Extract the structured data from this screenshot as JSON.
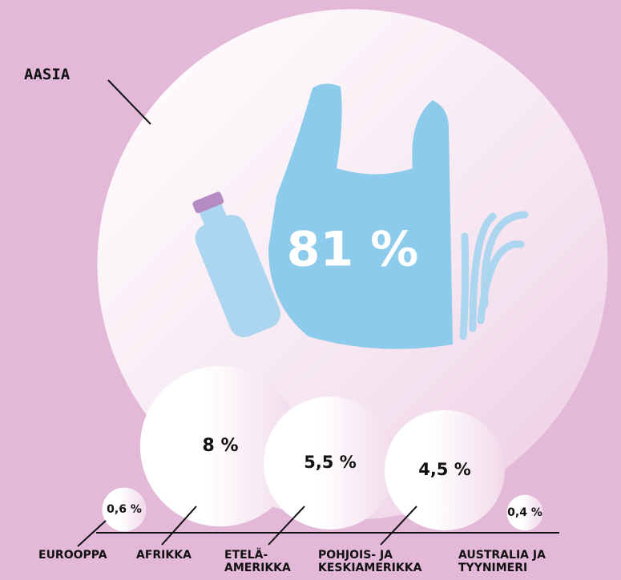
{
  "chart_data": {
    "type": "bubble",
    "categories": [
      "AASIA",
      "EUROOPPA",
      "AFRIKKA",
      "ETELÄ-AMERIKKA",
      "POHJOIS- JA KESKIAMERIKKA",
      "AUSTRALIA JA TYYNIMERI"
    ],
    "values": [
      81,
      0.6,
      8,
      5.5,
      4.5,
      0.4
    ],
    "value_labels": [
      "81 %",
      "0,6 %",
      "8 %",
      "5,5 %",
      "4,5 %",
      "0,4 %"
    ],
    "color": "#ffffff"
  }
}
